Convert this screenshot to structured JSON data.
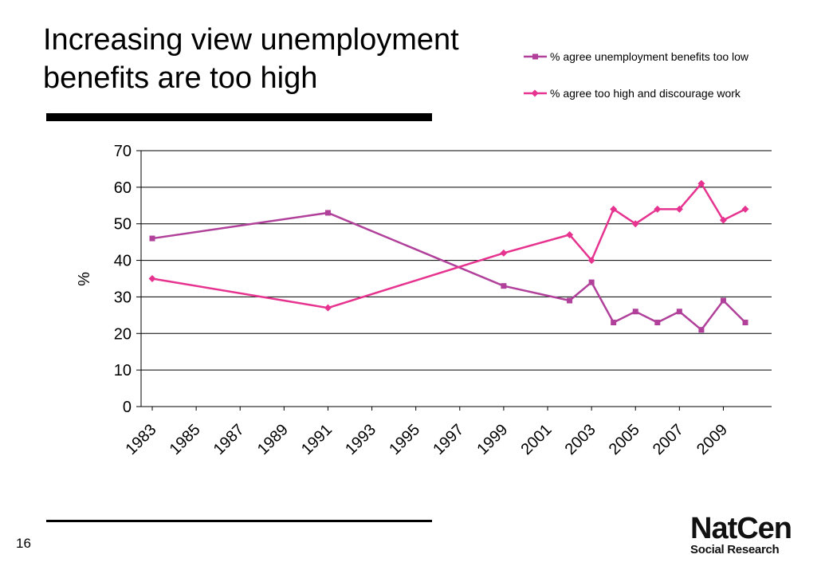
{
  "slide": {
    "title_line1": "Increasing view unemployment",
    "title_line2": "benefits are too high",
    "page_number": "16"
  },
  "logo": {
    "line1": "NatCen",
    "line2": "Social Research"
  },
  "colors": {
    "series_low": "#b0409a",
    "series_high": "#e6338f",
    "grid": "#000000"
  },
  "chart_data": {
    "type": "line",
    "ylabel": "%",
    "ylim": [
      0,
      70
    ],
    "yticks": [
      0,
      10,
      20,
      30,
      40,
      50,
      60,
      70
    ],
    "xlim": [
      1983,
      2011
    ],
    "xticks": [
      "1983",
      "1985",
      "1987",
      "1989",
      "1991",
      "1993",
      "1995",
      "1997",
      "1999",
      "2001",
      "2003",
      "2005",
      "2007",
      "2009"
    ],
    "grid": true,
    "legend_position": "top-right",
    "series": [
      {
        "name": "% agree unemployment benefits too low",
        "marker": "square",
        "x": [
          1983,
          1991,
          1999,
          2002,
          2003,
          2004,
          2005,
          2006,
          2007,
          2008,
          2009,
          2010
        ],
        "values": [
          46,
          53,
          33,
          29,
          34,
          23,
          26,
          23,
          26,
          21,
          29,
          23
        ]
      },
      {
        "name": "% agree too high and discourage work",
        "marker": "diamond",
        "x": [
          1983,
          1991,
          1999,
          2002,
          2003,
          2004,
          2005,
          2006,
          2007,
          2008,
          2009,
          2010
        ],
        "values": [
          35,
          27,
          42,
          47,
          40,
          54,
          50,
          54,
          54,
          61,
          51,
          54
        ]
      }
    ]
  }
}
